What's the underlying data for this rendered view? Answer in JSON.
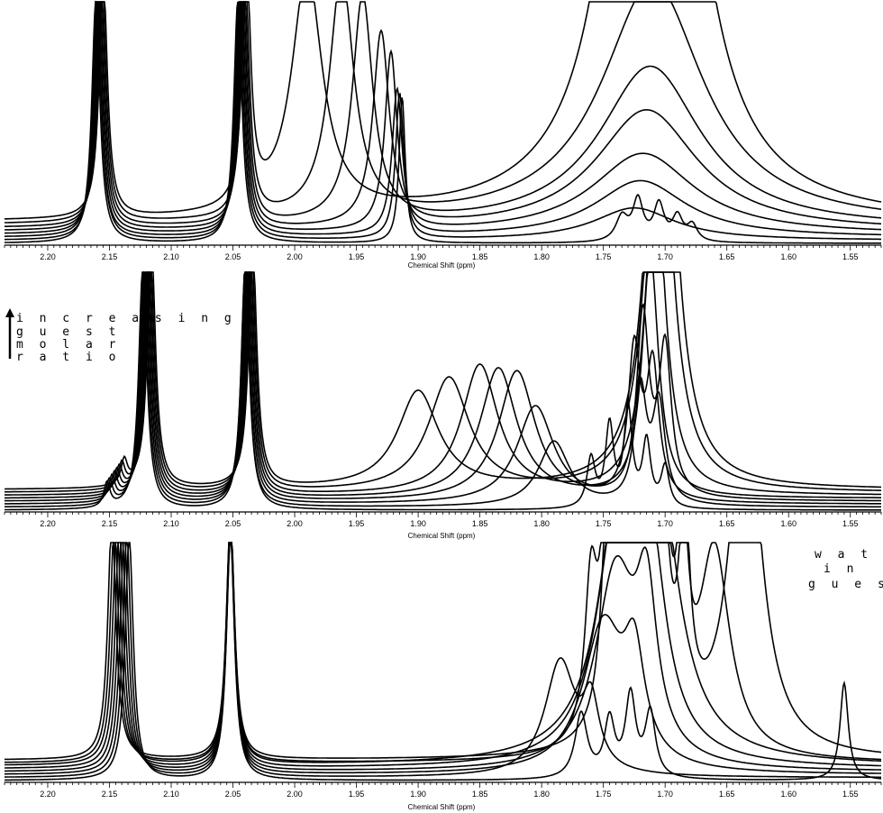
{
  "chart_data": [
    {
      "type": "line",
      "panel": "top",
      "xlabel": "Chemical Shift (ppm)",
      "ylabel": "",
      "title": "",
      "xlim": [
        2.235,
        1.525
      ],
      "x_reversed": true,
      "x_ticks": [
        "2.20",
        "2.15",
        "2.10",
        "2.05",
        "2.00",
        "1.95",
        "1.90",
        "1.85",
        "1.80",
        "1.75",
        "1.70",
        "1.65",
        "1.60",
        "1.55"
      ],
      "annotations": [],
      "series": [
        {
          "offset": 0,
          "peaks": [
            [
              2.161,
              30,
              0.004
            ],
            [
              2.046,
              30,
              0.004
            ],
            [
              1.913,
              18,
              0.003
            ],
            [
              1.735,
              3,
              0.006
            ],
            [
              1.722,
              5,
              0.005
            ],
            [
              1.705,
              4.5,
              0.005
            ],
            [
              1.69,
              3,
              0.005
            ],
            [
              1.678,
              2,
              0.005
            ]
          ]
        },
        {
          "offset": 2,
          "peaks": [
            [
              2.16,
              30,
              0.004
            ],
            [
              2.045,
              30,
              0.004
            ],
            [
              1.915,
              18,
              0.004
            ],
            [
              1.725,
              4,
              0.04
            ]
          ]
        },
        {
          "offset": 4,
          "peaks": [
            [
              2.16,
              30,
              0.004
            ],
            [
              2.044,
              30,
              0.004
            ],
            [
              1.917,
              18,
              0.005
            ],
            [
              1.72,
              7,
              0.045
            ]
          ]
        },
        {
          "offset": 6,
          "peaks": [
            [
              2.159,
              30,
              0.004
            ],
            [
              2.043,
              30,
              0.004
            ],
            [
              1.922,
              22,
              0.006
            ],
            [
              1.718,
              10,
              0.05
            ]
          ]
        },
        {
          "offset": 8,
          "peaks": [
            [
              2.158,
              30,
              0.004
            ],
            [
              2.042,
              30,
              0.004
            ],
            [
              1.93,
              24,
              0.008
            ],
            [
              1.715,
              15,
              0.05
            ]
          ]
        },
        {
          "offset": 10,
          "peaks": [
            [
              2.157,
              30,
              0.004
            ],
            [
              2.041,
              30,
              0.004
            ],
            [
              1.945,
              28,
              0.01
            ],
            [
              1.712,
              20,
              0.05
            ]
          ]
        },
        {
          "offset": 12,
          "peaks": [
            [
              2.156,
              30,
              0.004
            ],
            [
              2.04,
              30,
              0.004
            ],
            [
              1.962,
              30,
              0.012
            ],
            [
              1.71,
              30,
              0.05
            ]
          ]
        },
        {
          "offset": 14,
          "peaks": [
            [
              2.155,
              30,
              0.004
            ],
            [
              2.039,
              30,
              0.004
            ],
            [
              1.99,
              30,
              0.015
            ],
            [
              1.72,
              55,
              0.03
            ],
            [
              1.698,
              45,
              0.03
            ]
          ]
        }
      ]
    },
    {
      "type": "line",
      "panel": "middle",
      "xlabel": "Chemical Shift (ppm)",
      "ylabel": "",
      "title": "",
      "xlim": [
        2.235,
        1.525
      ],
      "x_reversed": true,
      "x_ticks": [
        "2.20",
        "2.15",
        "2.10",
        "2.05",
        "2.00",
        "1.95",
        "1.90",
        "1.85",
        "1.80",
        "1.75",
        "1.70",
        "1.65",
        "1.60",
        "1.55"
      ],
      "annotations": [
        "i n c r e a s i n g",
        "g u e s t",
        "m o l a r",
        "r a t i o"
      ],
      "series": [
        {
          "offset": 0,
          "peaks": [
            [
              2.152,
              3,
              0.003
            ],
            [
              2.123,
              30,
              0.004
            ],
            [
              2.04,
              30,
              0.004
            ],
            [
              1.76,
              6,
              0.004
            ],
            [
              1.745,
              10,
              0.004
            ],
            [
              1.73,
              12,
              0.004
            ],
            [
              1.715,
              8,
              0.004
            ],
            [
              1.7,
              5,
              0.004
            ]
          ]
        },
        {
          "offset": 2,
          "peaks": [
            [
              2.15,
              3,
              0.003
            ],
            [
              2.122,
              30,
              0.004
            ],
            [
              2.04,
              30,
              0.004
            ],
            [
              1.79,
              8,
              0.015
            ],
            [
              1.72,
              14,
              0.006
            ],
            [
              1.705,
              12,
              0.006
            ]
          ]
        },
        {
          "offset": 4,
          "peaks": [
            [
              2.148,
              3,
              0.003
            ],
            [
              2.121,
              30,
              0.004
            ],
            [
              2.039,
              30,
              0.004
            ],
            [
              1.805,
              12,
              0.018
            ],
            [
              1.725,
              18,
              0.006
            ],
            [
              1.71,
              16,
              0.006
            ]
          ]
        },
        {
          "offset": 6,
          "peaks": [
            [
              2.146,
              3,
              0.003
            ],
            [
              2.12,
              30,
              0.004
            ],
            [
              2.038,
              30,
              0.004
            ],
            [
              1.82,
              16,
              0.018
            ],
            [
              1.718,
              22,
              0.006
            ],
            [
              1.7,
              18,
              0.006
            ]
          ]
        },
        {
          "offset": 8,
          "peaks": [
            [
              2.144,
              3,
              0.003
            ],
            [
              2.119,
              30,
              0.004
            ],
            [
              2.037,
              30,
              0.004
            ],
            [
              1.835,
              16,
              0.018
            ],
            [
              1.712,
              30,
              0.008
            ]
          ]
        },
        {
          "offset": 10,
          "peaks": [
            [
              2.142,
              3,
              0.003
            ],
            [
              2.118,
              30,
              0.004
            ],
            [
              2.036,
              30,
              0.004
            ],
            [
              1.85,
              16,
              0.018
            ],
            [
              1.708,
              40,
              0.01
            ]
          ]
        },
        {
          "offset": 12,
          "peaks": [
            [
              2.14,
              3,
              0.003
            ],
            [
              2.117,
              30,
              0.004
            ],
            [
              2.035,
              30,
              0.004
            ],
            [
              1.875,
              14,
              0.02
            ],
            [
              1.705,
              55,
              0.012
            ]
          ]
        },
        {
          "offset": 14,
          "peaks": [
            [
              2.138,
              3,
              0.003
            ],
            [
              2.116,
              30,
              0.004
            ],
            [
              2.034,
              30,
              0.004
            ],
            [
              1.9,
              12,
              0.02
            ],
            [
              1.703,
              70,
              0.012
            ]
          ]
        }
      ]
    },
    {
      "type": "line",
      "panel": "bottom",
      "xlabel": "Chemical Shift (ppm)",
      "ylabel": "",
      "title": "",
      "xlim": [
        2.235,
        1.525
      ],
      "x_reversed": true,
      "x_ticks": [
        "2.20",
        "2.15",
        "2.10",
        "2.05",
        "2.00",
        "1.95",
        "1.90",
        "1.85",
        "1.80",
        "1.75",
        "1.70",
        "1.65",
        "1.60",
        "1.55"
      ],
      "annotations": [
        "w a t e r",
        "i n",
        "g u e s t"
      ],
      "series": [
        {
          "offset": 0,
          "peaks": [
            [
              2.134,
              30,
              0.004
            ],
            [
              2.052,
              30,
              0.004
            ],
            [
              1.768,
              8,
              0.006
            ],
            [
              1.745,
              7,
              0.005
            ],
            [
              1.728,
              10,
              0.005
            ],
            [
              1.712,
              8,
              0.005
            ],
            [
              1.555,
              12,
              0.004
            ]
          ]
        },
        {
          "offset": 2,
          "peaks": [
            [
              2.136,
              30,
              0.004
            ],
            [
              2.052,
              30,
              0.004
            ],
            [
              1.785,
              14,
              0.015
            ],
            [
              1.76,
              8,
              0.008
            ]
          ]
        },
        {
          "offset": 4,
          "peaks": [
            [
              2.138,
              30,
              0.004
            ],
            [
              2.052,
              30,
              0.004
            ],
            [
              1.75,
              18,
              0.02
            ],
            [
              1.725,
              12,
              0.01
            ]
          ]
        },
        {
          "offset": 6,
          "peaks": [
            [
              2.14,
              30,
              0.004
            ],
            [
              2.052,
              30,
              0.004
            ],
            [
              1.74,
              24,
              0.02
            ],
            [
              1.715,
              18,
              0.01
            ]
          ]
        },
        {
          "offset": 8,
          "peaks": [
            [
              2.142,
              30,
              0.004
            ],
            [
              2.052,
              30,
              0.004
            ],
            [
              1.738,
              30,
              0.02
            ],
            [
              1.712,
              22,
              0.015
            ]
          ]
        },
        {
          "offset": 10,
          "peaks": [
            [
              2.144,
              30,
              0.004
            ],
            [
              2.052,
              30,
              0.004
            ],
            [
              1.735,
              32,
              0.02
            ],
            [
              1.705,
              28,
              0.02
            ]
          ]
        },
        {
          "offset": 12,
          "peaks": [
            [
              2.146,
              30,
              0.004
            ],
            [
              2.052,
              30,
              0.004
            ],
            [
              1.76,
              18,
              0.006
            ],
            [
              1.745,
              40,
              0.006
            ],
            [
              1.725,
              60,
              0.006
            ],
            [
              1.705,
              48,
              0.006
            ],
            [
              1.685,
              20,
              0.005
            ],
            [
              1.66,
              25,
              0.015
            ]
          ]
        },
        {
          "offset": 14,
          "peaks": [
            [
              2.148,
              30,
              0.004
            ],
            [
              2.052,
              30,
              0.004
            ],
            [
              1.745,
              35,
              0.006
            ],
            [
              1.725,
              70,
              0.006
            ],
            [
              1.705,
              55,
              0.006
            ],
            [
              1.685,
              30,
              0.005
            ],
            [
              1.635,
              45,
              0.015
            ]
          ]
        }
      ]
    }
  ]
}
